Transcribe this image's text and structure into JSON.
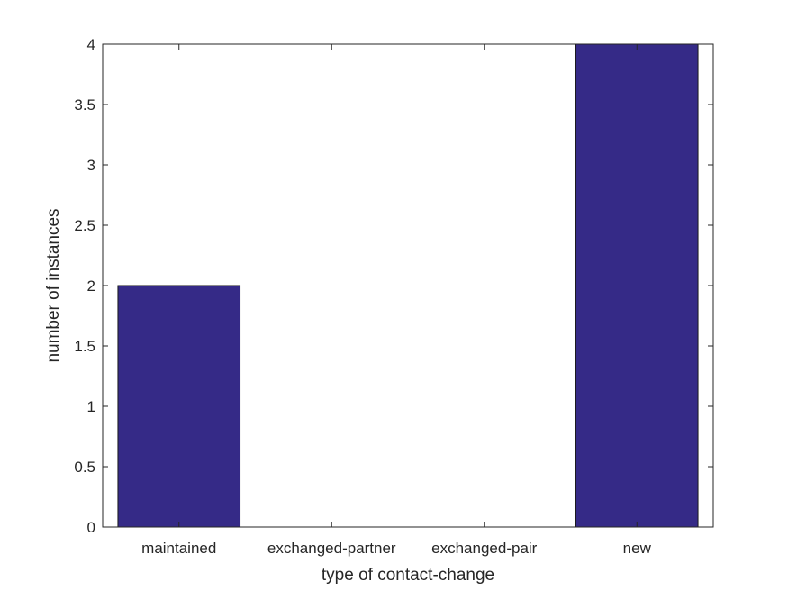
{
  "chart_data": {
    "type": "bar",
    "categories": [
      "maintained",
      "exchanged-partner",
      "exchanged-pair",
      "new"
    ],
    "values": [
      2,
      0,
      0,
      4
    ],
    "xlabel": "type of contact-change",
    "ylabel": "number of instances",
    "ylim": [
      0,
      4
    ],
    "yticks": [
      0,
      0.5,
      1,
      1.5,
      2,
      2.5,
      3,
      3.5,
      4
    ],
    "ytick_labels": [
      "0",
      "0.5",
      "1",
      "1.5",
      "2",
      "2.5",
      "3",
      "3.5",
      "4"
    ],
    "grid": false,
    "bar_color": "#352A87",
    "edge_color": "#1a1a1a"
  }
}
